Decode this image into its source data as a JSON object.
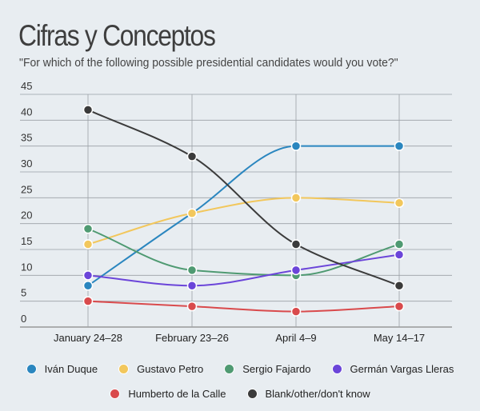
{
  "header": {
    "title": "Cifras y Conceptos",
    "subtitle": "\"For which of the following possible presidential candidates would you vote?\""
  },
  "chart_data": {
    "type": "line",
    "title": "Cifras y Conceptos",
    "subtitle": "\"For which of the following possible presidential candidates would you vote?\"",
    "categories": [
      "January 24–28",
      "February 23–26",
      "April 4–9",
      "May 14–17"
    ],
    "ylim": [
      0,
      45
    ],
    "yticks": [
      0,
      5,
      10,
      15,
      20,
      25,
      30,
      35,
      40,
      45
    ],
    "grid": true,
    "legend": "bottom",
    "series": [
      {
        "name": "Iván Duque",
        "color": "#2a86bf",
        "values": [
          8,
          22,
          35,
          35
        ]
      },
      {
        "name": "Gustavo Petro",
        "color": "#f2c75c",
        "values": [
          16,
          22,
          25,
          24
        ]
      },
      {
        "name": "Sergio Fajardo",
        "color": "#4f9a72",
        "values": [
          19,
          11,
          10,
          16
        ]
      },
      {
        "name": "Germán Vargas Lleras",
        "color": "#6b45d9",
        "values": [
          10,
          8,
          11,
          14
        ]
      },
      {
        "name": "Humberto de la Calle",
        "color": "#d94a4c",
        "values": [
          5,
          4,
          3,
          4
        ]
      },
      {
        "name": "Blank/other/don't know",
        "color": "#3b3b3b",
        "values": [
          42,
          33,
          16,
          8
        ]
      }
    ]
  }
}
